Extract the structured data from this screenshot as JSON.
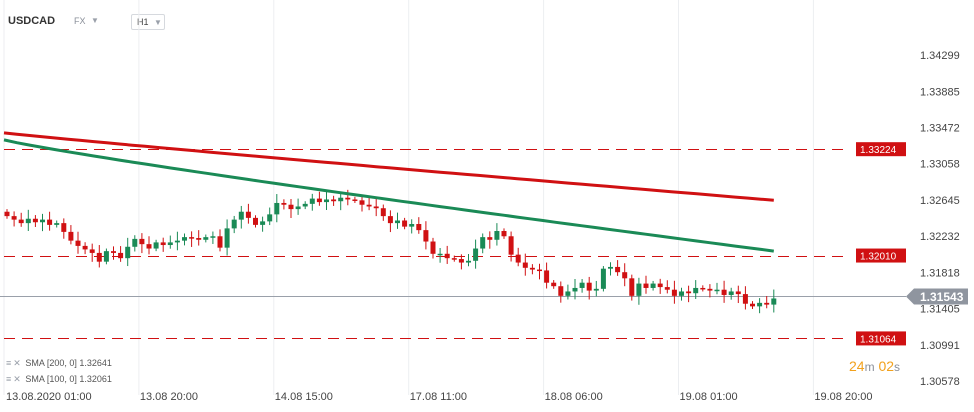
{
  "header": {
    "symbol": "USDCAD",
    "market": "FX",
    "timeframe": "H1"
  },
  "indicators": [
    {
      "label": "SMA [200, 0] 1.32641",
      "color": "#d01012"
    },
    {
      "label": "SMA [100, 0] 1.32061",
      "color": "#1a8a56"
    }
  ],
  "countdown": {
    "minutes": "24",
    "min_unit": "m",
    "seconds": "02",
    "sec_unit": "s"
  },
  "colors": {
    "up": "#1a8a56",
    "down": "#d01012",
    "sma200": "#d01012",
    "sma100": "#1a8a56",
    "level": "#d01012",
    "price_tag": "#8f959f"
  },
  "chart_data": {
    "type": "candlestick",
    "symbol": "USDCAD",
    "timeframe": "H1",
    "price_ticks": [
      1.34299,
      1.33885,
      1.33472,
      1.33058,
      1.32645,
      1.32232,
      1.31818,
      1.31405,
      1.30991,
      1.30578
    ],
    "price_tick_labels": [
      "1.34299",
      "1.33885",
      "1.33472",
      "1.33058",
      "1.32645",
      "1.32232",
      "1.31818",
      "1.31405",
      "1.30991",
      "1.30578"
    ],
    "time_labels": [
      "13.08.2020  01:00",
      "13.08  20:00",
      "14.08  15:00",
      "17.08  11:00",
      "18.08  06:00",
      "19.08  01:00",
      "19.08  20:00"
    ],
    "time_label_bars": [
      0,
      19,
      38,
      57,
      76,
      95,
      114
    ],
    "current_price": 1.31543,
    "current_price_label": "1.31543",
    "levels": [
      {
        "price": 1.33224,
        "label": "1.33224"
      },
      {
        "price": 1.3201,
        "label": "1.32010"
      },
      {
        "price": 1.31064,
        "label": "1.31064"
      }
    ],
    "sma200": {
      "name": "SMA [200, 0]",
      "value": 1.32641,
      "start": 1.3341,
      "end": 1.32641
    },
    "sma100": {
      "name": "SMA [100, 0]",
      "value": 1.32061,
      "start": 1.3333,
      "end": 1.32061
    },
    "close": [
      1.3246,
      1.3242,
      1.3238,
      1.3243,
      1.3239,
      1.3242,
      1.3236,
      1.3238,
      1.3228,
      1.3218,
      1.3212,
      1.3208,
      1.3204,
      1.3194,
      1.3206,
      1.3204,
      1.3198,
      1.3211,
      1.322,
      1.3214,
      1.3209,
      1.3216,
      1.3213,
      1.3216,
      1.3218,
      1.3222,
      1.3221,
      1.3219,
      1.3222,
      1.3223,
      1.321,
      1.3232,
      1.3242,
      1.3251,
      1.3244,
      1.3236,
      1.324,
      1.3248,
      1.3261,
      1.3259,
      1.3254,
      1.3257,
      1.326,
      1.3266,
      1.3262,
      1.3265,
      1.3263,
      1.3267,
      1.3265,
      1.3264,
      1.3259,
      1.3257,
      1.3255,
      1.3246,
      1.3238,
      1.3241,
      1.3234,
      1.3237,
      1.323,
      1.3217,
      1.3203,
      1.3203,
      1.3198,
      1.3197,
      1.3193,
      1.3195,
      1.3209,
      1.3222,
      1.3219,
      1.3229,
      1.3223,
      1.3202,
      1.3193,
      1.3187,
      1.3185,
      1.3184,
      1.317,
      1.3166,
      1.3155,
      1.316,
      1.3164,
      1.317,
      1.3161,
      1.3163,
      1.3186,
      1.3188,
      1.3182,
      1.3175,
      1.3155,
      1.3169,
      1.3164,
      1.3169,
      1.3165,
      1.3162,
      1.3155,
      1.316,
      1.3158,
      1.3164,
      1.3163,
      1.3161,
      1.3162,
      1.3156,
      1.316,
      1.3157,
      1.3146,
      1.3143,
      1.3147,
      1.3145,
      1.3152
    ]
  }
}
